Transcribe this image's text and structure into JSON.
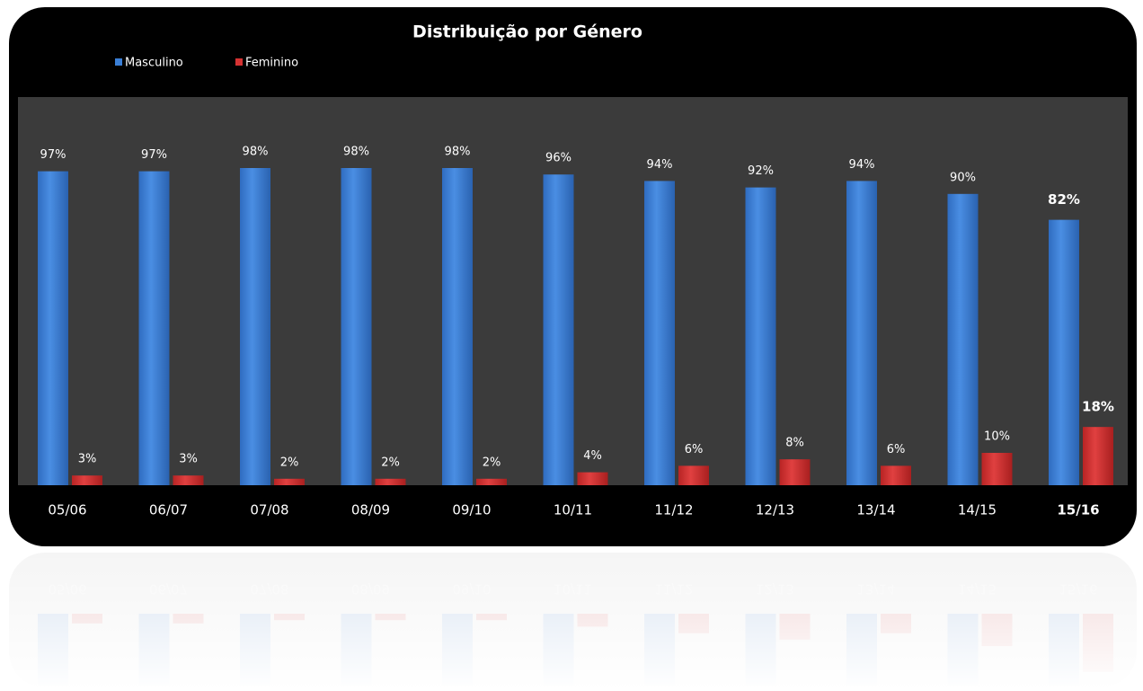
{
  "chart_data": {
    "type": "bar",
    "title": "Distribuição por Género",
    "categories": [
      "05/06",
      "06/07",
      "07/08",
      "08/09",
      "09/10",
      "10/11",
      "11/12",
      "12/13",
      "13/14",
      "14/15",
      "15/16"
    ],
    "series": [
      {
        "name": "Masculino",
        "color": "#3a7fd6",
        "values": [
          97,
          97,
          98,
          98,
          98,
          96,
          94,
          92,
          94,
          90,
          82
        ],
        "value_labels": [
          "97%",
          "97%",
          "98%",
          "98%",
          "98%",
          "96%",
          "94%",
          "92%",
          "94%",
          "90%",
          "82%"
        ]
      },
      {
        "name": "Feminino",
        "color": "#d63232",
        "values": [
          3,
          3,
          2,
          2,
          2,
          4,
          6,
          8,
          6,
          10,
          18
        ],
        "value_labels": [
          "3%",
          "3%",
          "2%",
          "2%",
          "2%",
          "4%",
          "6%",
          "8%",
          "6%",
          "10%",
          "18%"
        ]
      }
    ]
  }
}
